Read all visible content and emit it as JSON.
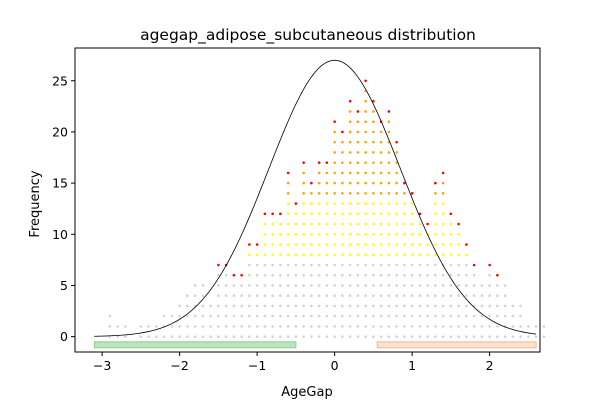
{
  "chart_data": {
    "type": "scatter",
    "title": "agegap_adipose_subcutaneous distribution",
    "xlabel": "AgeGap",
    "ylabel": "Frequency",
    "xlim": [
      -3.35,
      2.65
    ],
    "ylim": [
      -1.5,
      28.2
    ],
    "x_ticks": [
      -3,
      -2,
      -1,
      0,
      1,
      2
    ],
    "x_tick_labels": [
      "−3",
      "−2",
      "−1",
      "0",
      "1",
      "2"
    ],
    "y_ticks": [
      0,
      5,
      10,
      15,
      20,
      25
    ],
    "y_tick_labels": [
      "0",
      "5",
      "10",
      "15",
      "20",
      "25"
    ],
    "grid": false,
    "bin_width": 0.1,
    "bin_start": -2.9,
    "bin_heights": [
      2,
      1,
      1,
      0,
      1,
      1,
      1,
      2,
      2,
      3,
      4,
      5,
      5,
      3,
      7,
      7,
      6,
      6,
      9,
      9,
      12,
      12,
      12,
      16,
      13,
      17,
      15,
      17,
      17,
      21,
      20,
      23,
      22,
      25,
      23,
      21,
      22,
      19,
      15,
      14,
      12,
      11,
      15,
      16,
      12,
      11,
      9,
      7,
      5,
      7,
      6,
      5,
      3,
      3,
      1,
      1,
      1,
      0,
      0,
      0
    ],
    "colors": {
      "low": "#d3d3d3",
      "mid": "#ffff00",
      "high": "#ffa500",
      "top": "#ff0000",
      "zero": "#008000",
      "curve": "#000000",
      "left_band": "#bfe3bf",
      "left_band_edge": "#8fcf8f",
      "right_band": "#fde0cf",
      "right_band_edge": "#f3b995"
    },
    "normal_curve": {
      "mean": 0.0,
      "sd": 0.85,
      "peak": 27.0,
      "x_range": [
        -3.1,
        2.6
      ]
    },
    "bands": [
      {
        "name": "left",
        "x": [
          -3.1,
          -0.5
        ],
        "y": -0.8
      },
      {
        "name": "right",
        "x": [
          0.55,
          2.6
        ],
        "y": -0.8
      }
    ]
  }
}
